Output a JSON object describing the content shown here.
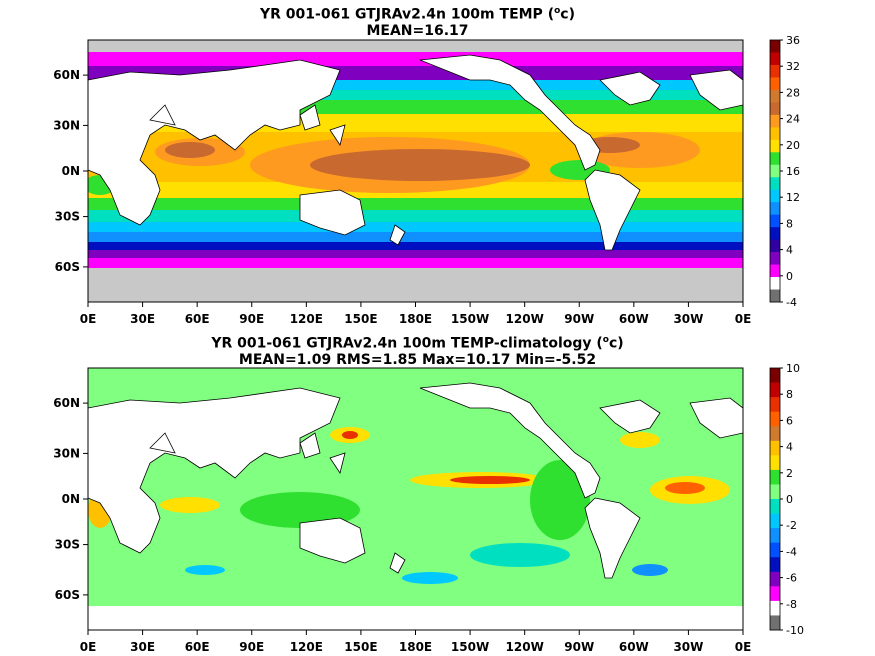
{
  "panels": [
    {
      "id": "top",
      "title_line1": "YR 001-061 GTJRAv2.4n 100m TEMP (",
      "title_unit": "o",
      "title_line1_end": "c)",
      "title_line2": "MEAN=16.17",
      "lon_labels": [
        "0E",
        "30E",
        "60E",
        "90E",
        "120E",
        "150E",
        "180E",
        "150W",
        "120W",
        "90W",
        "60W",
        "30W",
        "0E"
      ],
      "lat_labels": [
        "60N",
        "30N",
        "0N",
        "30S",
        "60S"
      ],
      "colorbar": {
        "labels": [
          "36",
          "32",
          "28",
          "24",
          "20",
          "16",
          "12",
          "8",
          "4",
          "0",
          "-4"
        ],
        "colors": [
          "#7a0000",
          "#c00000",
          "#e83000",
          "#ff6000",
          "#d07a30",
          "#c86a30",
          "#ff9a20",
          "#ffc000",
          "#ffe000",
          "#30e030",
          "#80ff80",
          "#00e0c0",
          "#00c8ff",
          "#1090ff",
          "#0050ff",
          "#0010c0",
          "#3000a0",
          "#8000c0",
          "#ff00ff",
          "#ffffff",
          "#707070"
        ]
      }
    },
    {
      "id": "bottom",
      "title_line1": "YR 001-061 GTJRAv2.4n 100m TEMP-climatology (",
      "title_unit": "o",
      "title_line1_end": "c)",
      "title_line2": "MEAN=1.09   RMS=1.85   Max=10.17   Min=-5.52",
      "lon_labels": [
        "0E",
        "30E",
        "60E",
        "90E",
        "120E",
        "150E",
        "180E",
        "150W",
        "120W",
        "90W",
        "60W",
        "30W",
        "0E"
      ],
      "lat_labels": [
        "60N",
        "30N",
        "0N",
        "30S",
        "60S"
      ],
      "colorbar": {
        "labels": [
          "10",
          "8",
          "6",
          "4",
          "2",
          "0",
          "-2",
          "-4",
          "-6",
          "-8",
          "-10"
        ],
        "colors": [
          "#7a0000",
          "#c00000",
          "#e83000",
          "#ff6000",
          "#d07a30",
          "#ffc000",
          "#ffe000",
          "#30e030",
          "#80ff80",
          "#00e0c0",
          "#00c8ff",
          "#1090ff",
          "#0050ff",
          "#0010c0",
          "#8000c0",
          "#ff00ff",
          "#ffffff",
          "#707070"
        ]
      }
    }
  ],
  "colors": {
    "land": "#ffffff",
    "ice": "#c8c8c8",
    "coast": "#000000"
  }
}
